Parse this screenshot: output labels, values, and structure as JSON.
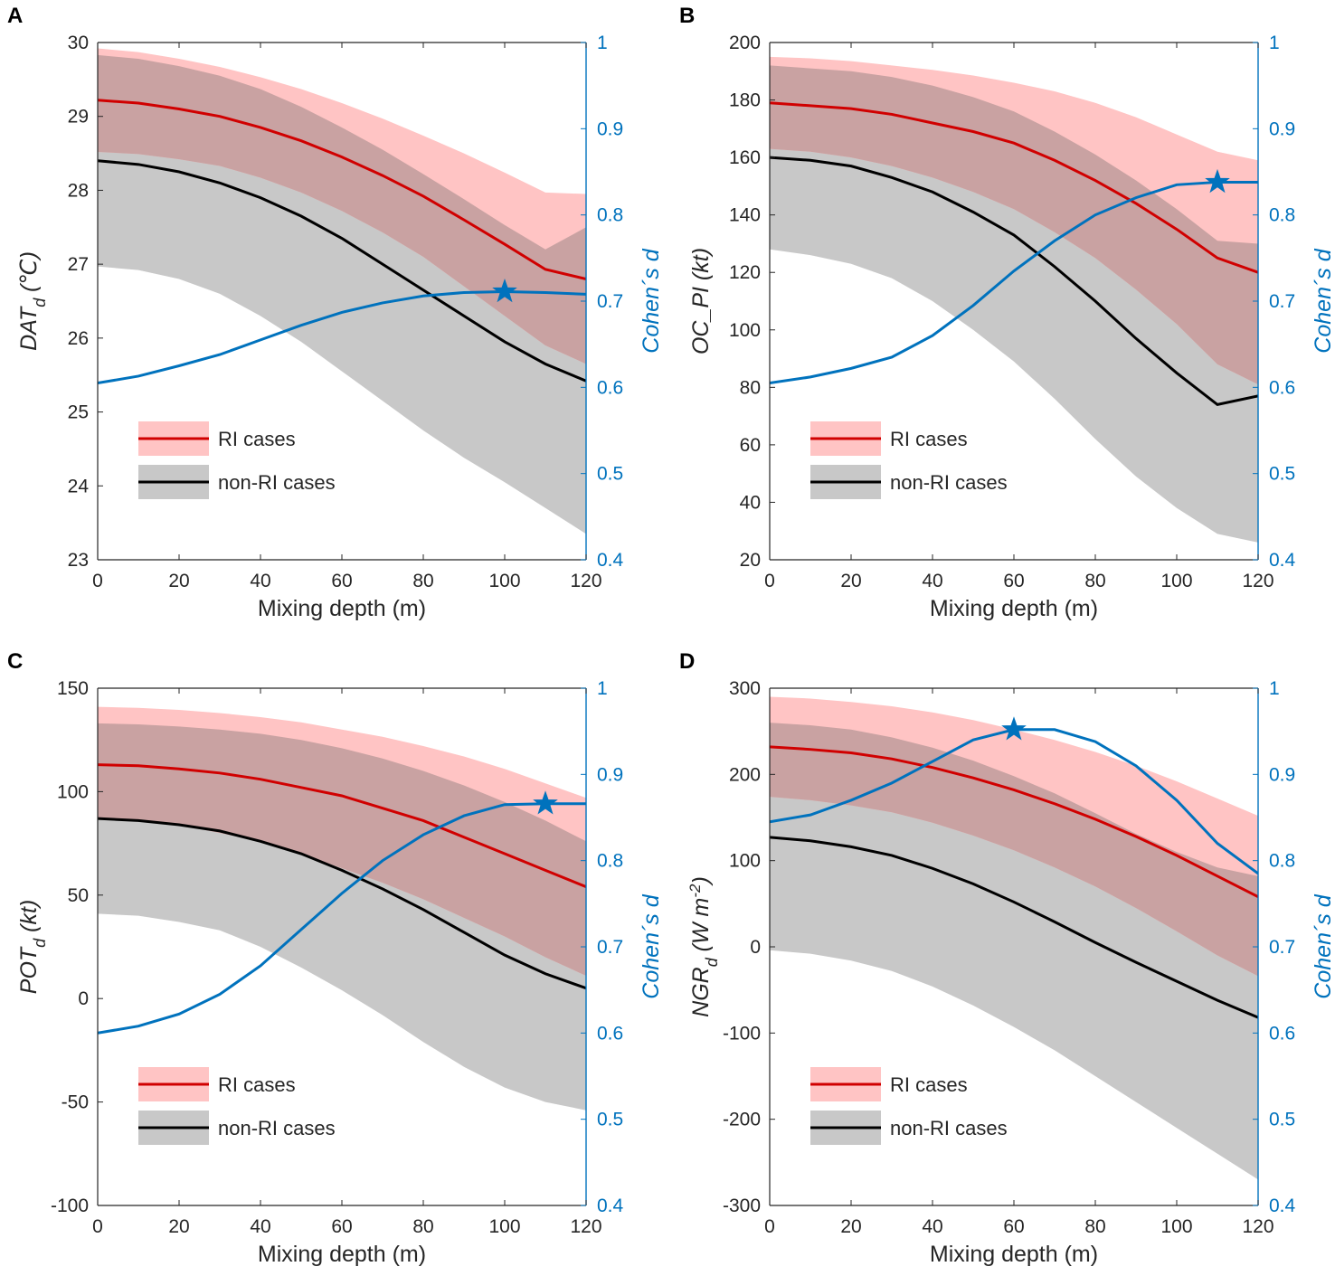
{
  "colors": {
    "ri_line": "#D00000",
    "ri_band": "#FFC4C4",
    "nonri_line": "#000000",
    "nonri_band": "#C8C8C8",
    "overlap_band": "#C9A2A2",
    "cohen": "#0072BD",
    "axis": "#262626"
  },
  "chart_data": [
    {
      "panel": "A",
      "type": "line",
      "xlabel": "Mixing depth (m)",
      "ylabel_main": "DAT",
      "ylabel_sub": "d",
      "ylabel_rest": " (℃)",
      "ylabel_right": "Cohen´s d",
      "xlim": [
        0,
        120
      ],
      "ylim": [
        23,
        30
      ],
      "ylim_right": [
        0.4,
        1
      ],
      "xticks": [
        0,
        20,
        40,
        60,
        80,
        100,
        120
      ],
      "yticks": [
        23,
        24,
        25,
        26,
        27,
        28,
        29,
        30
      ],
      "yticks_right": [
        0.4,
        0.5,
        0.6,
        0.7,
        0.8,
        0.9,
        1
      ],
      "x": [
        0,
        10,
        20,
        30,
        40,
        50,
        60,
        70,
        80,
        90,
        100,
        110,
        120
      ],
      "ri_mean": [
        29.22,
        29.18,
        29.1,
        29.0,
        28.85,
        28.67,
        28.45,
        28.2,
        27.92,
        27.6,
        27.27,
        26.93,
        26.8
      ],
      "ri_upper": [
        29.92,
        29.87,
        29.78,
        29.67,
        29.53,
        29.37,
        29.18,
        28.97,
        28.74,
        28.5,
        28.24,
        27.97,
        27.95
      ],
      "ri_lower": [
        28.52,
        28.49,
        28.42,
        28.33,
        28.17,
        27.97,
        27.72,
        27.43,
        27.1,
        26.7,
        26.3,
        25.9,
        25.65
      ],
      "nonri_mean": [
        28.4,
        28.35,
        28.25,
        28.1,
        27.9,
        27.65,
        27.35,
        27.0,
        26.65,
        26.3,
        25.95,
        25.65,
        25.42
      ],
      "nonri_upper": [
        29.83,
        29.78,
        29.68,
        29.55,
        29.37,
        29.13,
        28.85,
        28.55,
        28.22,
        27.88,
        27.53,
        27.2,
        27.5
      ],
      "nonri_lower": [
        26.97,
        26.92,
        26.8,
        26.6,
        26.3,
        25.95,
        25.55,
        25.15,
        24.75,
        24.38,
        24.05,
        23.7,
        23.35
      ],
      "cohen_d": [
        0.605,
        0.613,
        0.625,
        0.638,
        0.655,
        0.672,
        0.687,
        0.698,
        0.706,
        0.71,
        0.711,
        0.71,
        0.708
      ],
      "star": {
        "x": 100,
        "y": 0.711
      },
      "legend": [
        "RI cases",
        "non-RI cases"
      ]
    },
    {
      "panel": "B",
      "type": "line",
      "xlabel": "Mixing depth (m)",
      "ylabel_main": "OC_PI",
      "ylabel_sub": "",
      "ylabel_rest": " (kt)",
      "ylabel_right": "Cohen´s d",
      "xlim": [
        0,
        120
      ],
      "ylim": [
        20,
        200
      ],
      "ylim_right": [
        0.4,
        1
      ],
      "xticks": [
        0,
        20,
        40,
        60,
        80,
        100,
        120
      ],
      "yticks": [
        20,
        40,
        60,
        80,
        100,
        120,
        140,
        160,
        180,
        200
      ],
      "yticks_right": [
        0.4,
        0.5,
        0.6,
        0.7,
        0.8,
        0.9,
        1
      ],
      "x": [
        0,
        10,
        20,
        30,
        40,
        50,
        60,
        70,
        80,
        90,
        100,
        110,
        120
      ],
      "ri_mean": [
        179,
        178,
        177,
        175,
        172,
        169,
        165,
        159,
        152,
        144,
        135,
        125,
        120
      ],
      "ri_upper": [
        195,
        194.5,
        193.5,
        192,
        190.5,
        188.5,
        186,
        183,
        179,
        174,
        168,
        162,
        159
      ],
      "ri_lower": [
        163,
        162,
        160,
        157,
        153,
        148,
        142,
        134,
        125,
        114,
        102,
        88,
        81
      ],
      "nonri_mean": [
        160,
        159,
        157,
        153,
        148,
        141,
        133,
        122,
        110,
        97,
        85,
        74,
        77
      ],
      "nonri_upper": [
        192,
        191,
        190,
        188,
        185,
        181,
        176,
        169,
        161,
        152,
        142,
        131,
        130
      ],
      "nonri_lower": [
        128,
        126,
        123,
        118,
        110,
        100,
        89,
        76,
        62,
        49,
        38,
        29,
        26
      ],
      "cohen_d": [
        0.605,
        0.612,
        0.622,
        0.635,
        0.66,
        0.695,
        0.735,
        0.77,
        0.8,
        0.82,
        0.835,
        0.838,
        0.838
      ],
      "star": {
        "x": 110,
        "y": 0.838
      },
      "legend": [
        "RI cases",
        "non-RI cases"
      ]
    },
    {
      "panel": "C",
      "type": "line",
      "xlabel": "Mixing depth (m)",
      "ylabel_main": "POT",
      "ylabel_sub": "d",
      "ylabel_rest": " (kt)",
      "ylabel_right": "Cohen´s d",
      "xlim": [
        0,
        120
      ],
      "ylim": [
        -100,
        150
      ],
      "ylim_right": [
        0.4,
        1
      ],
      "xticks": [
        0,
        20,
        40,
        60,
        80,
        100,
        120
      ],
      "yticks": [
        -100,
        -50,
        0,
        50,
        100,
        150
      ],
      "yticks_right": [
        0.4,
        0.5,
        0.6,
        0.7,
        0.8,
        0.9,
        1
      ],
      "x": [
        0,
        10,
        20,
        30,
        40,
        50,
        60,
        70,
        80,
        90,
        100,
        110,
        120
      ],
      "ri_mean": [
        113,
        112.5,
        111,
        109,
        106,
        102,
        98,
        92,
        86,
        78,
        70,
        62,
        54
      ],
      "ri_upper": [
        141,
        140.5,
        139.5,
        138,
        136,
        133.5,
        130,
        126.5,
        122,
        117,
        111,
        104,
        97
      ],
      "ri_lower": [
        87,
        86.5,
        84,
        80,
        76,
        70,
        63,
        56,
        48,
        39,
        30,
        20,
        11
      ],
      "nonri_mean": [
        87,
        86,
        84,
        81,
        76,
        70,
        62,
        53,
        43,
        32,
        21,
        12,
        5
      ],
      "nonri_upper": [
        133,
        132.5,
        131.5,
        130,
        128,
        125,
        121,
        116,
        110,
        103,
        95,
        86,
        76
      ],
      "nonri_lower": [
        41,
        40,
        37,
        33,
        25,
        15,
        4,
        -8,
        -21,
        -33,
        -43,
        -50,
        -54
      ],
      "cohen_d": [
        0.6,
        0.608,
        0.622,
        0.645,
        0.678,
        0.72,
        0.762,
        0.8,
        0.83,
        0.852,
        0.865,
        0.866,
        0.866
      ],
      "star": {
        "x": 110,
        "y": 0.866
      },
      "legend": [
        "RI cases",
        "non-RI cases"
      ]
    },
    {
      "panel": "D",
      "type": "line",
      "xlabel": "Mixing depth (m)",
      "ylabel_main": "NGR",
      "ylabel_sub": "d",
      "ylabel_rest": " (W m",
      "ylabel_sup": "-2",
      "ylabel_end": ")",
      "ylabel_right": "Cohen´s d",
      "xlim": [
        0,
        120
      ],
      "ylim": [
        -300,
        300
      ],
      "ylim_right": [
        0.4,
        1
      ],
      "xticks": [
        0,
        20,
        40,
        60,
        80,
        100,
        120
      ],
      "yticks": [
        -300,
        -200,
        -100,
        0,
        100,
        200,
        300
      ],
      "yticks_right": [
        0.4,
        0.5,
        0.6,
        0.7,
        0.8,
        0.9,
        1
      ],
      "x": [
        0,
        10,
        20,
        30,
        40,
        50,
        60,
        70,
        80,
        90,
        100,
        110,
        120
      ],
      "ri_mean": [
        232,
        229,
        225,
        218,
        208,
        196,
        182,
        166,
        148,
        128,
        106,
        82,
        58
      ],
      "ri_upper": [
        290,
        288,
        284,
        279,
        272,
        263,
        252,
        240,
        226,
        210,
        192,
        172,
        152
      ],
      "ri_lower": [
        174,
        170,
        164,
        156,
        144,
        129,
        112,
        92,
        70,
        45,
        18,
        -10,
        -34
      ],
      "nonri_mean": [
        127,
        123,
        116,
        106,
        91,
        73,
        52,
        29,
        5,
        -18,
        -40,
        -62,
        -82
      ],
      "nonri_upper": [
        260,
        257,
        252,
        243,
        231,
        216,
        198,
        178,
        155,
        131,
        110,
        92,
        82
      ],
      "nonri_lower": [
        -4,
        -8,
        -16,
        -28,
        -46,
        -68,
        -93,
        -120,
        -150,
        -180,
        -210,
        -240,
        -270
      ],
      "cohen_d": [
        0.845,
        0.853,
        0.87,
        0.89,
        0.915,
        0.94,
        0.952,
        0.952,
        0.938,
        0.91,
        0.87,
        0.82,
        0.785
      ],
      "star": {
        "x": 60,
        "y": 0.952
      },
      "legend": [
        "RI cases",
        "non-RI cases"
      ]
    }
  ]
}
